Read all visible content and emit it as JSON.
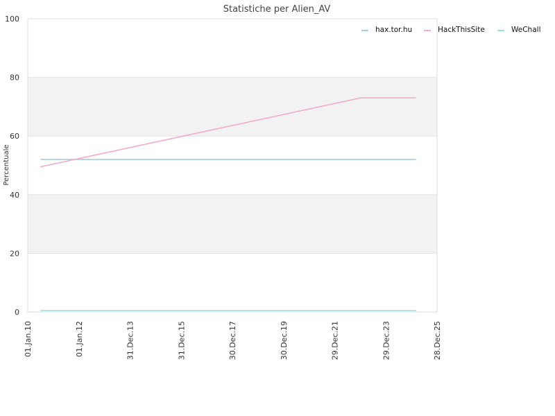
{
  "chart_data": {
    "type": "line",
    "title": "Statistiche per Alien_AV",
    "xlabel": "",
    "ylabel": "Percentuale",
    "ylim": [
      0,
      100
    ],
    "yticks": [
      "0",
      "20",
      "40",
      "60",
      "80",
      "100"
    ],
    "xlim": [
      "2010-01-01",
      "2025-12-28"
    ],
    "xticks": [
      {
        "label": "01.Jan.10",
        "date": "2010-01-01"
      },
      {
        "label": "01.Jan.12",
        "date": "2012-01-01"
      },
      {
        "label": "31.Dec.13",
        "date": "2013-12-31"
      },
      {
        "label": "31.Dec.15",
        "date": "2015-12-31"
      },
      {
        "label": "30.Dec.17",
        "date": "2017-12-30"
      },
      {
        "label": "30.Dec.19",
        "date": "2019-12-30"
      },
      {
        "label": "29.Dec.21",
        "date": "2021-12-29"
      },
      {
        "label": "29.Dec.23",
        "date": "2023-12-29"
      },
      {
        "label": "28.Dec.25",
        "date": "2025-12-28"
      }
    ],
    "grid": true,
    "alternating_bands": true,
    "legend_position": "top-right",
    "series": [
      {
        "name": "hax.tor.hu",
        "color": "#9ecae1",
        "points": [
          {
            "x": "2010-07-01",
            "y": 52
          },
          {
            "x": "2025-03-01",
            "y": 52
          }
        ]
      },
      {
        "name": "HackThisSite",
        "color": "#f4a6c8",
        "points": [
          {
            "x": "2010-07-01",
            "y": 49.5
          },
          {
            "x": "2023-01-01",
            "y": 73
          },
          {
            "x": "2025-03-01",
            "y": 73
          }
        ]
      },
      {
        "name": "WeChall",
        "color": "#8fe0d8",
        "points": [
          {
            "x": "2010-07-01",
            "y": 0.5
          },
          {
            "x": "2025-03-01",
            "y": 0.5
          }
        ]
      }
    ]
  }
}
